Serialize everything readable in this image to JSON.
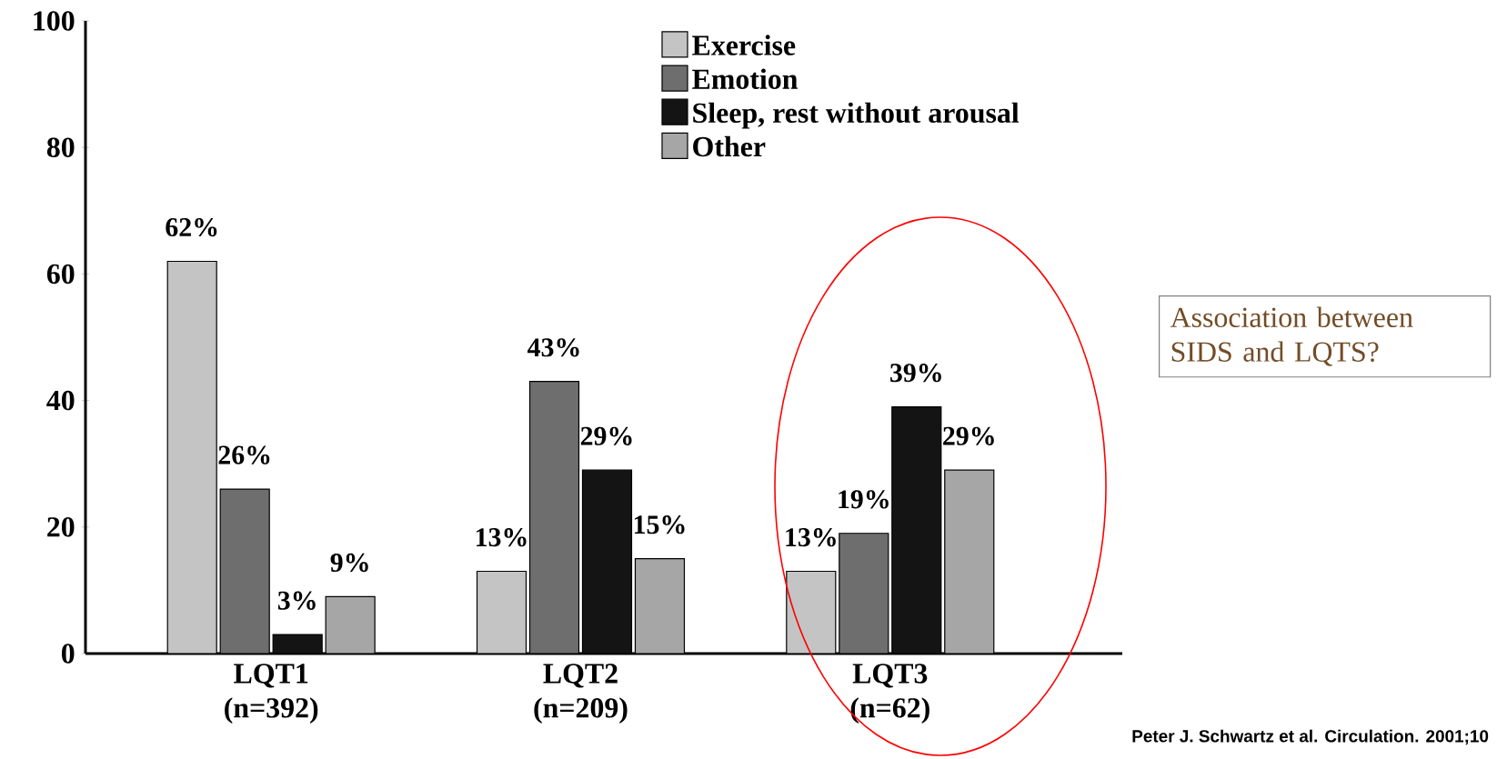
{
  "chart_data": {
    "type": "bar",
    "categories": [
      "LQT1 (n=392)",
      "LQT2 (n=209)",
      "LQT3 (n=62)"
    ],
    "series": [
      {
        "name": "Exercise",
        "color": "#c4c4c4",
        "values": [
          62,
          13,
          13
        ],
        "value_labels": [
          "62%",
          "13%",
          "13%"
        ]
      },
      {
        "name": "Emotion",
        "color": "#6e6e6e",
        "values": [
          26,
          43,
          19
        ],
        "value_labels": [
          "26%",
          "43%",
          "19%"
        ]
      },
      {
        "name": "Sleep, rest without arousal",
        "color": "#141414",
        "values": [
          3,
          29,
          39
        ],
        "value_labels": [
          "3%",
          "29%",
          "39%"
        ]
      },
      {
        "name": "Other",
        "color": "#a6a6a6",
        "values": [
          9,
          15,
          29
        ],
        "value_labels": [
          "9%",
          "15%",
          "29%"
        ]
      }
    ],
    "ylim": [
      0,
      100
    ],
    "yticks": [
      0,
      20,
      40,
      60,
      80,
      100
    ],
    "legend": "top",
    "annotations": [
      "Association between SIDS and LQTS?",
      "Peter J. Schwartz et al. Circulation. 2001;10"
    ]
  }
}
